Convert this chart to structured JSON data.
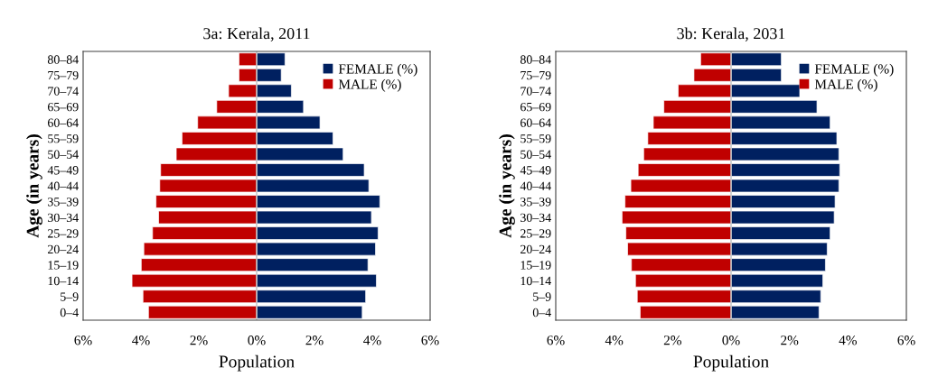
{
  "chart_data": [
    {
      "type": "bar",
      "orientation": "horizontal",
      "stacked": true,
      "title": "3a: Kerala, 2011",
      "xlabel": "Population",
      "ylabel": "Age (in years)",
      "categories": [
        "80–84",
        "75–79",
        "70–74",
        "65–69",
        "60–64",
        "55–59",
        "50–54",
        "45–49",
        "40–44",
        "35–39",
        "30–34",
        "25–29",
        "20–24",
        "15–19",
        "10–14",
        "5–9",
        "0–4"
      ],
      "series": [
        {
          "name": "FEMALE (%)",
          "color": "#002060",
          "values": [
            0.98,
            0.85,
            1.2,
            1.62,
            2.19,
            2.64,
            2.99,
            3.72,
            3.88,
            4.26,
            3.97,
            4.2,
            4.11,
            3.85,
            4.14,
            3.77,
            3.65
          ]
        },
        {
          "name": "MALE (%)",
          "color": "#c00000",
          "values": [
            -0.61,
            -0.61,
            -0.97,
            -1.38,
            -2.04,
            -2.58,
            -2.78,
            -3.32,
            -3.35,
            -3.48,
            -3.39,
            -3.6,
            -3.9,
            -3.99,
            -4.31,
            -3.93,
            -3.74
          ]
        }
      ],
      "xlim": [
        -6,
        6
      ],
      "xticks": [
        {
          "value": -6,
          "label": "6%"
        },
        {
          "value": -4,
          "label": "4%"
        },
        {
          "value": -2,
          "label": "2%"
        },
        {
          "value": 0,
          "label": "0%"
        },
        {
          "value": 2,
          "label": "2%"
        },
        {
          "value": 4,
          "label": "4%"
        },
        {
          "value": 6,
          "label": "6%"
        }
      ],
      "legend": "top right"
    },
    {
      "type": "bar",
      "orientation": "horizontal",
      "stacked": true,
      "title": "3b: Kerala, 2031",
      "xlabel": "Population",
      "ylabel": "Age (in years)",
      "categories": [
        "80–84",
        "75–79",
        "70–74",
        "65–69",
        "60–64",
        "55–59",
        "50–54",
        "45–49",
        "40–44",
        "35–39",
        "30–34",
        "25–29",
        "20–24",
        "15–19",
        "10–14",
        "5–9",
        "0–4"
      ],
      "series": [
        {
          "name": "FEMALE (%)",
          "color": "#002060",
          "values": [
            1.72,
            1.72,
            2.35,
            2.94,
            3.39,
            3.62,
            3.69,
            3.72,
            3.69,
            3.56,
            3.53,
            3.39,
            3.29,
            3.23,
            3.14,
            3.07,
            3.01
          ]
        },
        {
          "name": "MALE (%)",
          "color": "#c00000",
          "values": [
            -1.04,
            -1.27,
            -1.81,
            -2.3,
            -2.66,
            -2.85,
            -2.99,
            -3.18,
            -3.43,
            -3.63,
            -3.73,
            -3.6,
            -3.54,
            -3.41,
            -3.27,
            -3.21,
            -3.11
          ]
        }
      ],
      "xlim": [
        -6,
        6
      ],
      "xticks": [
        {
          "value": -6,
          "label": "6%"
        },
        {
          "value": -4,
          "label": "4%"
        },
        {
          "value": -2,
          "label": "2%"
        },
        {
          "value": 0,
          "label": "0%"
        },
        {
          "value": 2,
          "label": "2%"
        },
        {
          "value": 4,
          "label": "4%"
        },
        {
          "value": 6,
          "label": "6%"
        }
      ],
      "legend": "top right"
    }
  ]
}
